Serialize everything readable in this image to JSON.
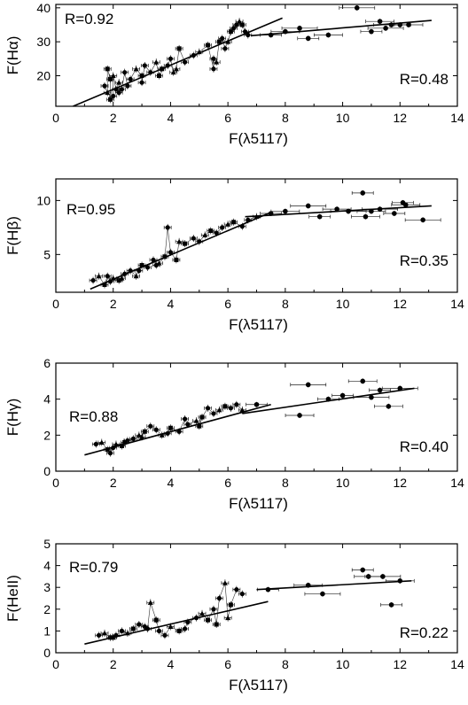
{
  "chart_data": [
    {
      "type": "scatter",
      "xlabel": "F(λ5117)",
      "ylabel": "F(Hα)",
      "xlim": [
        0,
        14
      ],
      "ylim": [
        11,
        41
      ],
      "xticks": [
        0,
        2,
        4,
        6,
        8,
        10,
        12,
        14
      ],
      "yticks": [
        20,
        30,
        40
      ],
      "annotations": [
        {
          "text": "R=0.92",
          "position": "top-left"
        },
        {
          "text": "R=0.48",
          "position": "right"
        }
      ],
      "fits": [
        [
          [
            0.6,
            11
          ],
          [
            7.9,
            37
          ]
        ],
        [
          [
            6.8,
            31.8
          ],
          [
            13.1,
            36.3
          ]
        ]
      ],
      "series": [
        {
          "points": [
            [
              1.7,
              17
            ],
            [
              1.8,
              15
            ],
            [
              1.9,
              19
            ],
            [
              2.0,
              14
            ],
            [
              2.1,
              16
            ],
            [
              2.2,
              18
            ],
            [
              1.8,
              22
            ],
            [
              2.3,
              16
            ],
            [
              2.5,
              17
            ],
            [
              2.0,
              20
            ],
            [
              1.9,
              13
            ],
            [
              2.2,
              15
            ],
            [
              2.6,
              19
            ],
            [
              2.8,
              22
            ],
            [
              3.0,
              20
            ],
            [
              3.1,
              23
            ],
            [
              3.3,
              21
            ],
            [
              3.5,
              24
            ],
            [
              3.7,
              22
            ],
            [
              3.9,
              23
            ],
            [
              4.0,
              25
            ],
            [
              4.1,
              21
            ],
            [
              4.3,
              28
            ],
            [
              4.5,
              24
            ],
            [
              4.8,
              26
            ],
            [
              5.0,
              27
            ],
            [
              5.3,
              29
            ],
            [
              5.5,
              22
            ],
            [
              5.5,
              25
            ],
            [
              5.6,
              24
            ],
            [
              5.7,
              30
            ],
            [
              5.8,
              31
            ],
            [
              5.9,
              28
            ],
            [
              6.0,
              30
            ],
            [
              6.1,
              33
            ],
            [
              6.2,
              34
            ],
            [
              6.3,
              35
            ],
            [
              6.4,
              36
            ],
            [
              6.5,
              35
            ],
            [
              6.6,
              33
            ],
            [
              6.7,
              32
            ],
            [
              4.2,
              22
            ],
            [
              3.6,
              20
            ],
            [
              3.0,
              18
            ],
            [
              2.4,
              21
            ]
          ]
        },
        {
          "points": [
            [
              7.5,
              32
            ],
            [
              8.0,
              33
            ],
            [
              8.5,
              34
            ],
            [
              8.8,
              31
            ],
            [
              9.5,
              32
            ],
            [
              10.5,
              40
            ],
            [
              11.0,
              33
            ],
            [
              11.3,
              36
            ],
            [
              11.7,
              35
            ],
            [
              12.0,
              35
            ],
            [
              12.3,
              35
            ],
            [
              11.5,
              34
            ]
          ]
        }
      ]
    },
    {
      "type": "scatter",
      "xlabel": "F(λ5117)",
      "ylabel": "F(Hβ)",
      "xlim": [
        0,
        14
      ],
      "ylim": [
        1.5,
        12
      ],
      "xticks": [
        0,
        2,
        4,
        6,
        8,
        10,
        12,
        14
      ],
      "yticks": [
        5,
        10
      ],
      "annotations": [
        {
          "text": "R=0.95",
          "position": "top-left"
        },
        {
          "text": "R=0.35",
          "position": "right"
        }
      ],
      "fits": [
        [
          [
            1.2,
            1.8
          ],
          [
            7.5,
            8.9
          ]
        ],
        [
          [
            6.6,
            8.5
          ],
          [
            13.1,
            9.5
          ]
        ]
      ],
      "series": [
        {
          "points": [
            [
              1.3,
              2.6
            ],
            [
              1.5,
              3.0
            ],
            [
              1.7,
              2.2
            ],
            [
              1.8,
              3.0
            ],
            [
              1.9,
              2.5
            ],
            [
              2.0,
              2.8
            ],
            [
              2.2,
              2.6
            ],
            [
              2.4,
              3.2
            ],
            [
              2.6,
              3.5
            ],
            [
              2.8,
              3.0
            ],
            [
              3.0,
              4.0
            ],
            [
              3.2,
              3.8
            ],
            [
              3.4,
              4.5
            ],
            [
              3.6,
              4.2
            ],
            [
              3.8,
              4.8
            ],
            [
              4.0,
              5.2
            ],
            [
              3.9,
              7.5
            ],
            [
              4.3,
              6.2
            ],
            [
              4.5,
              6.0
            ],
            [
              4.8,
              6.5
            ],
            [
              5.0,
              6.2
            ],
            [
              5.2,
              6.8
            ],
            [
              5.4,
              7.2
            ],
            [
              5.6,
              7.0
            ],
            [
              5.8,
              7.5
            ],
            [
              6.0,
              7.8
            ],
            [
              6.2,
              8.0
            ],
            [
              6.5,
              7.6
            ],
            [
              6.7,
              8.2
            ],
            [
              7.0,
              8.5
            ],
            [
              4.2,
              4.5
            ],
            [
              3.5,
              4.0
            ],
            [
              2.9,
              3.5
            ],
            [
              2.3,
              2.8
            ]
          ]
        },
        {
          "points": [
            [
              7.5,
              8.8
            ],
            [
              8.0,
              9.0
            ],
            [
              8.8,
              9.5
            ],
            [
              9.2,
              8.5
            ],
            [
              9.8,
              9.2
            ],
            [
              10.2,
              9.0
            ],
            [
              10.7,
              10.7
            ],
            [
              11.0,
              9.0
            ],
            [
              11.3,
              9.2
            ],
            [
              11.8,
              8.8
            ],
            [
              12.2,
              9.6
            ],
            [
              12.8,
              8.2
            ],
            [
              12.1,
              9.8
            ],
            [
              10.8,
              8.5
            ]
          ]
        }
      ]
    },
    {
      "type": "scatter",
      "xlabel": "F(λ5117)",
      "ylabel": "F(Hγ)",
      "xlim": [
        0,
        14
      ],
      "ylim": [
        0,
        6
      ],
      "xticks": [
        0,
        2,
        4,
        6,
        8,
        10,
        12,
        14
      ],
      "yticks": [
        0,
        2,
        4,
        6
      ],
      "annotations": [
        {
          "text": "R=0.88",
          "position": "top-left"
        },
        {
          "text": "R=0.40",
          "position": "right"
        }
      ],
      "fits": [
        [
          [
            1.0,
            0.9
          ],
          [
            7.5,
            3.7
          ]
        ],
        [
          [
            6.5,
            3.2
          ],
          [
            12.5,
            4.6
          ]
        ]
      ],
      "series": [
        {
          "points": [
            [
              1.4,
              1.5
            ],
            [
              1.6,
              1.6
            ],
            [
              1.8,
              1.2
            ],
            [
              1.9,
              1.0
            ],
            [
              2.0,
              1.3
            ],
            [
              2.1,
              1.5
            ],
            [
              2.3,
              1.4
            ],
            [
              2.5,
              1.7
            ],
            [
              2.7,
              1.8
            ],
            [
              2.9,
              2.0
            ],
            [
              3.1,
              2.2
            ],
            [
              3.3,
              2.5
            ],
            [
              3.5,
              2.3
            ],
            [
              3.7,
              2.0
            ],
            [
              4.0,
              2.4
            ],
            [
              4.3,
              2.2
            ],
            [
              4.6,
              2.6
            ],
            [
              4.9,
              2.8
            ],
            [
              5.1,
              3.0
            ],
            [
              5.3,
              3.5
            ],
            [
              5.5,
              3.2
            ],
            [
              5.7,
              3.4
            ],
            [
              5.9,
              3.6
            ],
            [
              6.1,
              3.5
            ],
            [
              6.3,
              3.7
            ],
            [
              6.5,
              3.4
            ],
            [
              5.0,
              2.5
            ],
            [
              4.5,
              2.9
            ],
            [
              3.9,
              2.1
            ],
            [
              3.0,
              1.9
            ],
            [
              2.4,
              1.6
            ]
          ]
        },
        {
          "points": [
            [
              7.0,
              3.7
            ],
            [
              8.5,
              3.1
            ],
            [
              8.8,
              4.8
            ],
            [
              9.5,
              4.0
            ],
            [
              10.7,
              5.0
            ],
            [
              11.0,
              4.1
            ],
            [
              11.3,
              4.5
            ],
            [
              11.6,
              3.6
            ],
            [
              12.0,
              4.6
            ],
            [
              10.0,
              4.2
            ]
          ]
        }
      ]
    },
    {
      "type": "scatter",
      "xlabel": "F(λ5117)",
      "ylabel": "F(HeII)",
      "xlim": [
        0,
        14
      ],
      "ylim": [
        0,
        5
      ],
      "xticks": [
        0,
        2,
        4,
        6,
        8,
        10,
        12,
        14
      ],
      "yticks": [
        0,
        1,
        2,
        3,
        4,
        5
      ],
      "annotations": [
        {
          "text": "R=0.79",
          "position": "top-left"
        },
        {
          "text": "R=0.22",
          "position": "right"
        }
      ],
      "fits": [
        [
          [
            1.0,
            0.4
          ],
          [
            7.4,
            2.35
          ]
        ],
        [
          [
            7.0,
            2.9
          ],
          [
            12.4,
            3.3
          ]
        ]
      ],
      "series": [
        {
          "points": [
            [
              1.5,
              0.8
            ],
            [
              1.7,
              0.9
            ],
            [
              1.9,
              0.7
            ],
            [
              2.1,
              0.8
            ],
            [
              2.3,
              1.0
            ],
            [
              2.5,
              0.9
            ],
            [
              2.7,
              1.1
            ],
            [
              2.9,
              1.3
            ],
            [
              3.1,
              1.2
            ],
            [
              3.3,
              2.3
            ],
            [
              3.5,
              1.5
            ],
            [
              3.6,
              1.0
            ],
            [
              3.8,
              0.8
            ],
            [
              4.0,
              1.2
            ],
            [
              4.3,
              1.0
            ],
            [
              4.6,
              1.4
            ],
            [
              4.9,
              1.6
            ],
            [
              5.1,
              1.8
            ],
            [
              5.3,
              1.5
            ],
            [
              5.5,
              2.0
            ],
            [
              5.7,
              2.5
            ],
            [
              5.9,
              3.2
            ],
            [
              6.1,
              2.2
            ],
            [
              6.3,
              2.9
            ],
            [
              6.5,
              2.7
            ],
            [
              6.0,
              1.6
            ],
            [
              5.6,
              1.3
            ],
            [
              4.5,
              1.1
            ],
            [
              3.2,
              1.1
            ],
            [
              2.0,
              0.7
            ]
          ]
        },
        {
          "points": [
            [
              7.4,
              2.9
            ],
            [
              8.8,
              3.1
            ],
            [
              9.3,
              2.7
            ],
            [
              10.7,
              3.8
            ],
            [
              10.9,
              3.5
            ],
            [
              11.4,
              3.5
            ],
            [
              11.7,
              2.2
            ],
            [
              12.0,
              3.3
            ]
          ]
        }
      ]
    }
  ]
}
